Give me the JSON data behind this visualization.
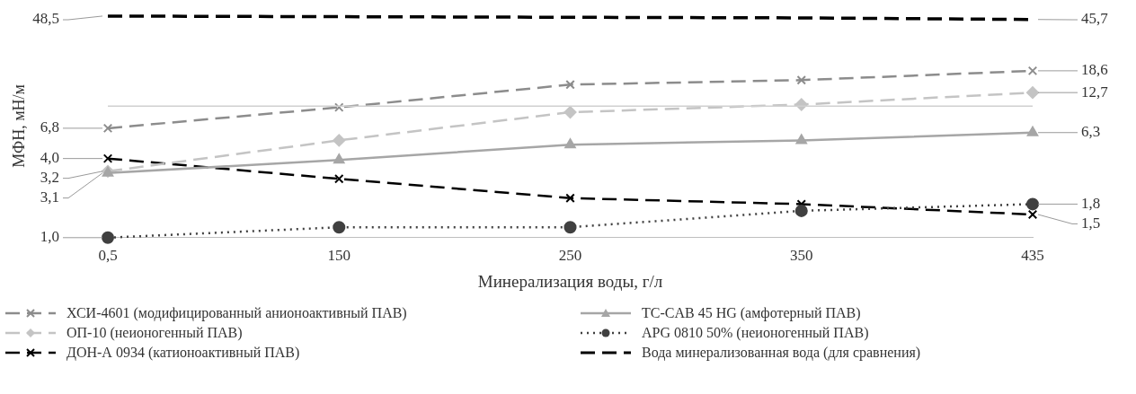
{
  "chart_data": {
    "type": "line",
    "xlabel": "Минерализация воды, г/л",
    "ylabel": "МФН, мН/м",
    "categories": [
      "0,5",
      "150",
      "250",
      "350",
      "435"
    ],
    "log": true,
    "ref_lines": [
      {
        "axis": "y",
        "value": 10,
        "color": "#d0d0d0"
      }
    ],
    "tick_labels": "x",
    "legend": "bottom",
    "series": [
      {
        "name": "ХСИ-4601 (модифицированный анионоактивный ПАВ)",
        "color": "#8c8c8c",
        "marker": "cross",
        "line_style": "dashed",
        "values": [
          6.8,
          9.8,
          14.6,
          15.8,
          18.6
        ],
        "value_labels": [
          "6,8",
          null,
          null,
          null,
          "18,6"
        ]
      },
      {
        "name": "TC-CAB 45 HG (амфотерный ПАВ)",
        "color": "#a6a6a6",
        "marker": "triangle",
        "line_style": "solid",
        "values": [
          3.1,
          3.9,
          5.1,
          5.5,
          6.3
        ],
        "value_labels": [
          "3,1",
          null,
          null,
          null,
          "6,3"
        ]
      },
      {
        "name": "ОП-10 (неионогенный ПАВ)",
        "color": "#c4c4c4",
        "marker": "diamond",
        "line_style": "dashed",
        "values": [
          3.2,
          5.5,
          9.0,
          10.3,
          12.7
        ],
        "value_labels": [
          "3,2",
          null,
          null,
          null,
          "12,7"
        ]
      },
      {
        "name": "APG 0810 50% (неионогенный ПАВ)",
        "color": "#404040",
        "marker": "circle",
        "line_style": "dotted",
        "values": [
          1.0,
          1.2,
          1.2,
          1.6,
          1.8
        ],
        "value_labels": [
          "1,0",
          null,
          null,
          null,
          "1,8"
        ]
      },
      {
        "name": "ДОН-А 0934 (катионоактивный ПАВ)",
        "color": "#000000",
        "marker": "cross",
        "line_style": "dashed",
        "values": [
          4.0,
          2.8,
          2.0,
          1.8,
          1.5
        ],
        "value_labels": [
          "4,0",
          null,
          null,
          null,
          "1,5"
        ]
      },
      {
        "name": "Вода минерализованная вода (для сравнения)",
        "color": "#000000",
        "marker": "none",
        "line_style": "dashed",
        "values": [
          48.5,
          48.0,
          47.5,
          47.0,
          45.7
        ],
        "value_labels": [
          "48,5",
          null,
          null,
          null,
          "45,7"
        ]
      }
    ]
  }
}
